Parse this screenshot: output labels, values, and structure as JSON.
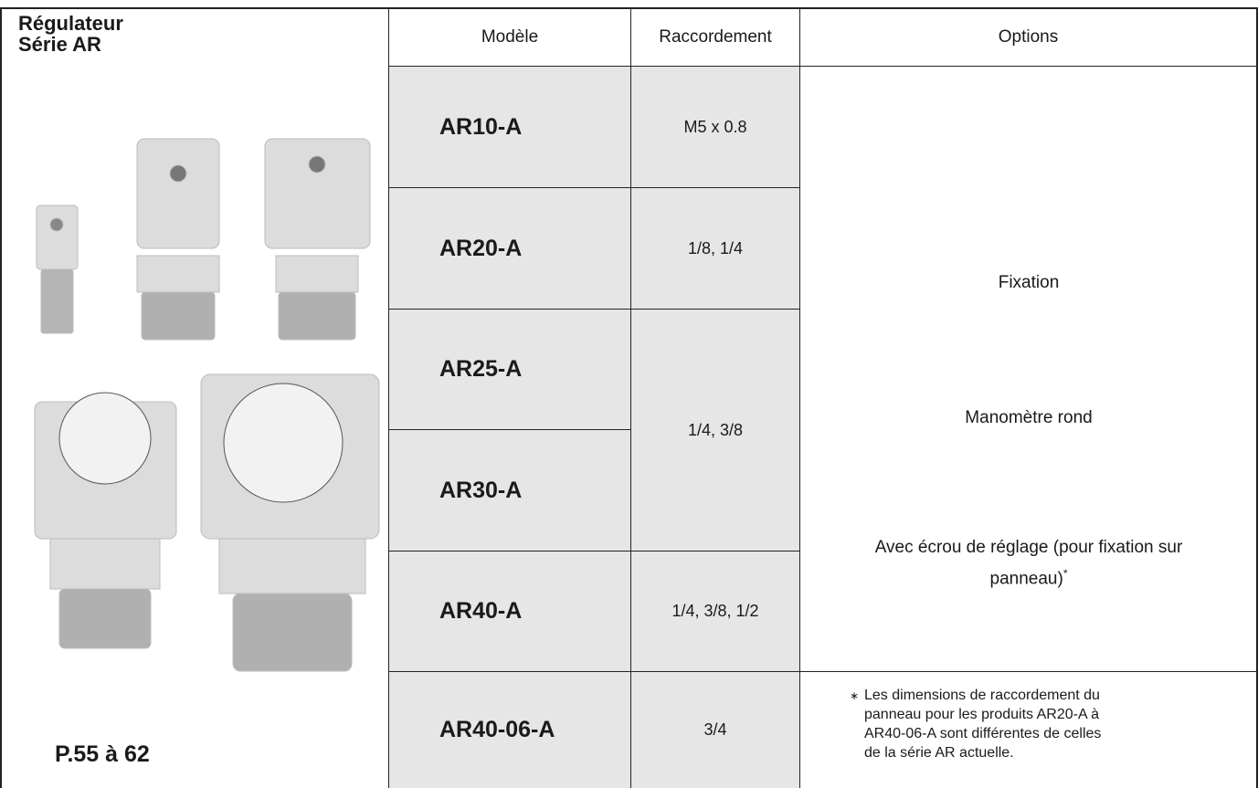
{
  "header": {
    "title_lines": [
      "Régulateur",
      "Série AR"
    ],
    "page_ref": "P.55 à 62"
  },
  "table": {
    "columns": [
      "Modèle",
      "Raccordement",
      "Options"
    ],
    "rows": [
      {
        "model": "AR10-A",
        "connection": "M5 x 0.8"
      },
      {
        "model": "AR20-A",
        "connection": "1/8, 1/4"
      },
      {
        "model": "AR25-A",
        "connection": "1/4, 3/8"
      },
      {
        "model": "AR30-A",
        "connection": null
      },
      {
        "model": "AR40-A",
        "connection": "1/4, 3/8, 1/2"
      },
      {
        "model": "AR40-06-A",
        "connection": "3/4"
      }
    ],
    "options": [
      "Fixation",
      "Manomètre rond",
      "Avec écrou de réglage (pour fixation sur panneau)"
    ],
    "options_marker": "*",
    "note": {
      "marker": "∗",
      "lines": [
        "Les dimensions de raccordement du",
        "panneau pour les produits AR20-A à",
        "AR40-06-A sont différentes de celles",
        "de la série AR actuelle."
      ]
    }
  }
}
